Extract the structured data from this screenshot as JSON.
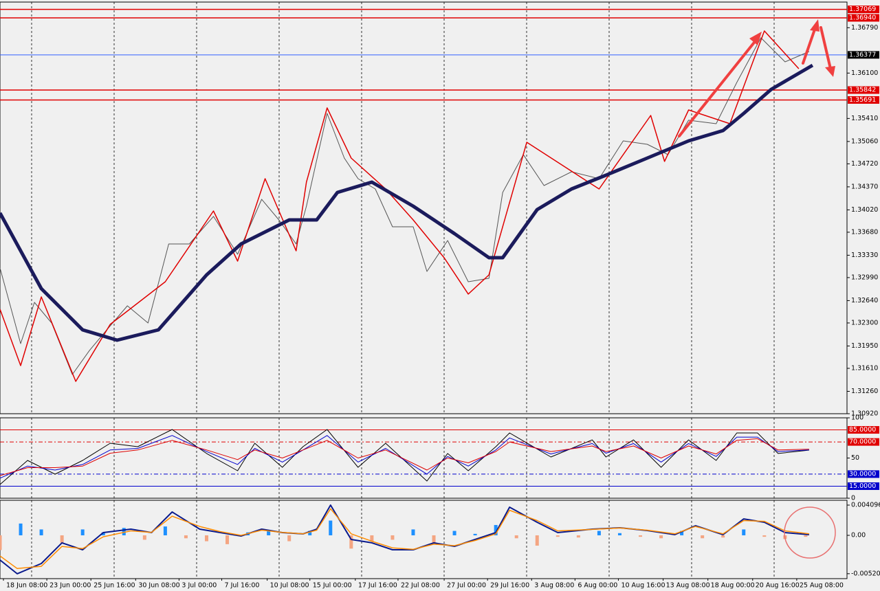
{
  "chart_data": [
    {
      "type": "line",
      "xlim": [
        0,
        246
      ],
      "ylim": [
        1.3092,
        1.3718
      ],
      "yticks": [
        {
          "value": 1.3092,
          "label": "1.30920"
        },
        {
          "value": 1.3126,
          "label": "1.31260"
        },
        {
          "value": 1.3161,
          "label": "1.31610"
        },
        {
          "value": 1.3195,
          "label": "1.31950"
        },
        {
          "value": 1.323,
          "label": "1.32300"
        },
        {
          "value": 1.3264,
          "label": "1.32640"
        },
        {
          "value": 1.3299,
          "label": "1.32990"
        },
        {
          "value": 1.3333,
          "label": "1.33330"
        },
        {
          "value": 1.3368,
          "label": "1.33680"
        },
        {
          "value": 1.3402,
          "label": "1.34020"
        },
        {
          "value": 1.3437,
          "label": "1.34370"
        },
        {
          "value": 1.3472,
          "label": "1.34720"
        },
        {
          "value": 1.3506,
          "label": "1.35060"
        },
        {
          "value": 1.3541,
          "label": "1.35410"
        },
        {
          "value": 1.361,
          "label": "1.36100"
        },
        {
          "value": 1.3679,
          "label": "1.36790"
        }
      ],
      "levels": [
        {
          "value": 1.37069,
          "color": "#e00000"
        },
        {
          "value": 1.3694,
          "label": "1.36940",
          "color": "#e00000"
        },
        {
          "value": 1.36377,
          "color": "#000000"
        },
        {
          "value": 1.35842,
          "color": "#e00000"
        },
        {
          "value": 1.35691,
          "color": "#e00000"
        }
      ],
      "series": [
        {
          "color": "#555555",
          "x": [
            0,
            6,
            10,
            15,
            21,
            26,
            31,
            37,
            43,
            49,
            55,
            62,
            69,
            76,
            81,
            86,
            89,
            95,
            100,
            104,
            109,
            114,
            120,
            124,
            130,
            136,
            142,
            146,
            152,
            158,
            166,
            174,
            181,
            188,
            194,
            200,
            208,
            214,
            221,
            228,
            235
          ],
          "values": [
            1.33136,
            1.31986,
            1.32613,
            1.323,
            1.31516,
            1.31882,
            1.32195,
            1.32561,
            1.323,
            1.33501,
            1.33501,
            1.3392,
            1.33345,
            1.34181,
            1.33867,
            1.33501,
            1.34076,
            1.35487,
            1.34808,
            1.34494,
            1.34337,
            1.33763,
            1.33763,
            1.33083,
            1.33554,
            1.32927,
            1.32979,
            1.34285,
            1.3486,
            1.3439,
            1.34599,
            1.34494,
            1.35069,
            1.35017,
            1.3486,
            1.35383,
            1.3533,
            1.35957,
            1.36637,
            1.36271,
            1.36428
          ]
        },
        {
          "color": "#e00000",
          "x": [
            0,
            6,
            12,
            22,
            32,
            48,
            62,
            69,
            77,
            86,
            89,
            95,
            102,
            112,
            120,
            129,
            136,
            142,
            153,
            174,
            189,
            193,
            200,
            212,
            222,
            232
          ],
          "values": [
            1.32509,
            1.31652,
            1.32697,
            1.31411,
            1.32279,
            1.32927,
            1.34003,
            1.3324,
            1.34494,
            1.33397,
            1.34442,
            1.35571,
            1.34808,
            1.34337,
            1.33867,
            1.33292,
            1.32739,
            1.33031,
            1.35048,
            1.34337,
            1.35456,
            1.34756,
            1.35539,
            1.3533,
            1.36741,
            1.36166
          ]
        },
        {
          "color": "#1b1b5c",
          "x": [
            0,
            12,
            24,
            34,
            46,
            60,
            70,
            84,
            92,
            98,
            108,
            120,
            132,
            142,
            146,
            156,
            166,
            176,
            188,
            200,
            210,
            216,
            224,
            236
          ],
          "values": [
            1.33972,
            1.32822,
            1.32195,
            1.32038,
            1.32195,
            1.33031,
            1.33501,
            1.33867,
            1.33867,
            1.34285,
            1.34442,
            1.34076,
            1.33658,
            1.33292,
            1.33292,
            1.34024,
            1.34337,
            1.34547,
            1.34808,
            1.35069,
            1.35226,
            1.35487,
            1.35853,
            1.36219
          ]
        }
      ]
    },
    {
      "type": "line",
      "xlim": [
        0,
        246
      ],
      "ylim": [
        0,
        100
      ],
      "yticks": [
        0,
        50,
        100
      ],
      "levels": [
        {
          "value": 85,
          "label": "85.0000",
          "color": "#e00000"
        },
        {
          "value": 70,
          "label": "70.0000",
          "color": "#e00000"
        },
        {
          "value": 30,
          "label": "30.0000",
          "color": "#0000cc"
        },
        {
          "value": 15,
          "label": "15.0000",
          "color": "#0000cc"
        }
      ],
      "series": [
        {
          "color": "#000000",
          "x": [
            0,
            8,
            16,
            24,
            32,
            40,
            50,
            60,
            69,
            74,
            82,
            88,
            95,
            104,
            112,
            124,
            130,
            136,
            144,
            148,
            160,
            172,
            176,
            184,
            192,
            200,
            208,
            214,
            220,
            226,
            235
          ],
          "values": [
            17.1,
            47.0,
            29.9,
            47.0,
            68.4,
            64.1,
            85.5,
            55.6,
            34.2,
            68.4,
            38.5,
            64.1,
            85.5,
            38.5,
            68.4,
            21.4,
            55.6,
            34.2,
            64.1,
            81.2,
            51.3,
            72.6,
            51.3,
            72.6,
            38.5,
            72.6,
            47.0,
            81.2,
            81.2,
            55.6,
            59.8
          ]
        },
        {
          "color": "#0000cc",
          "x": [
            0,
            8,
            16,
            24,
            32,
            40,
            50,
            60,
            69,
            74,
            82,
            88,
            95,
            104,
            112,
            124,
            130,
            136,
            144,
            148,
            160,
            172,
            176,
            184,
            192,
            200,
            208,
            214,
            220,
            226,
            235
          ],
          "values": [
            25,
            40,
            35,
            42,
            60,
            62,
            78,
            58,
            42,
            62,
            45,
            60,
            78,
            45,
            62,
            30,
            52,
            40,
            60,
            75,
            55,
            68,
            56,
            68,
            45,
            68,
            52,
            76,
            76,
            58,
            60
          ]
        },
        {
          "color": "#dd0000",
          "x": [
            0,
            8,
            16,
            24,
            32,
            40,
            50,
            60,
            69,
            74,
            82,
            88,
            95,
            104,
            112,
            124,
            130,
            136,
            144,
            148,
            160,
            172,
            176,
            184,
            192,
            200,
            208,
            214,
            220,
            226,
            235
          ],
          "values": [
            28,
            38,
            38,
            40,
            56,
            60,
            72,
            60,
            48,
            60,
            50,
            60,
            72,
            50,
            60,
            35,
            50,
            44,
            58,
            70,
            58,
            65,
            58,
            65,
            50,
            65,
            55,
            72,
            74,
            60,
            61
          ]
        }
      ]
    },
    {
      "type": "bar",
      "xlim": [
        0,
        246
      ],
      "ylim": [
        -0.00587,
        0.00475
      ],
      "yticks": [
        0.0040969,
        {
          "value": 0,
          "label": "0.00"
        },
        -0.005202
      ],
      "xticks": [
        {
          "value": 1,
          "label": "18 Jun 08:00"
        },
        {
          "value": 13.6,
          "label": "23 Jun 00:00"
        },
        {
          "value": 26.4,
          "label": "25 Jun 16:00"
        },
        {
          "value": 39.4,
          "label": "30 Jun 08:00"
        },
        {
          "value": 52,
          "label": "3 Jul 00:00"
        },
        {
          "value": 64.4,
          "label": "7 Jul 16:00"
        },
        {
          "value": 77.6,
          "label": "10 Jul 08:00"
        },
        {
          "value": 90,
          "label": "15 Jul 00:00"
        },
        {
          "value": 103.2,
          "label": "17 Jul 16:00"
        },
        {
          "value": 115.6,
          "label": "22 Jul 08:00"
        },
        {
          "value": 129,
          "label": "27 Jul 00:00"
        },
        {
          "value": 141.6,
          "label": "29 Jul 16:00"
        },
        {
          "value": 154.4,
          "label": "3 Aug 08:00"
        },
        {
          "value": 167,
          "label": "6 Aug 00:00"
        },
        {
          "value": 179.6,
          "label": "10 Aug 16:00"
        },
        {
          "value": 192.6,
          "label": "13 Aug 08:00"
        },
        {
          "value": 205.6,
          "label": "18 Aug 00:00"
        },
        {
          "value": 218.6,
          "label": "20 Aug 16:00"
        },
        {
          "value": 231.4,
          "label": "25 Aug 08:00"
        }
      ],
      "histogram": {
        "up_color": "#1e90ff",
        "down_color": "#f4a582",
        "x": [
          0,
          6,
          12,
          18,
          24,
          30,
          36,
          42,
          48,
          54,
          60,
          66,
          72,
          78,
          84,
          90,
          96,
          102,
          108,
          114,
          120,
          126,
          132,
          138,
          144,
          150,
          156,
          162,
          168,
          174,
          180,
          186,
          192,
          198,
          204,
          210,
          216,
          222,
          228,
          234
        ],
        "values": [
          -0.002,
          0.0016,
          0.0008,
          -0.001,
          0.0008,
          0.0004,
          0.001,
          -0.0006,
          0.0012,
          -0.0004,
          -0.0008,
          -0.0012,
          0.0004,
          0.0006,
          -0.0008,
          0.0006,
          0.002,
          -0.0018,
          -0.0008,
          -0.0006,
          0.0008,
          -0.001,
          0.0006,
          0.0002,
          0.0014,
          -0.0004,
          -0.0014,
          -0.0002,
          -0.0003,
          0.0006,
          0.0003,
          -0.0002,
          -0.0004,
          0.0006,
          -0.0004,
          -0.0003,
          0.0008,
          -0.0002,
          -0.0005,
          -0.0002
        ]
      },
      "series": [
        {
          "color": "#0a1a8c",
          "x": [
            0,
            5,
            12,
            18,
            24,
            30,
            38,
            44,
            50,
            58,
            64,
            70,
            76,
            82,
            88,
            92,
            96,
            102,
            108,
            114,
            120,
            126,
            132,
            138,
            144,
            148,
            156,
            162,
            172,
            180,
            188,
            196,
            202,
            210,
            216,
            222,
            228,
            235
          ],
          "values": [
            -0.00335,
            -0.00521,
            -0.00382,
            -0.00102,
            -0.00196,
            0.00037,
            0.00084,
            0.00037,
            0.00317,
            0.00084,
            0.00037,
            -9e-05,
            0.00084,
            0.00037,
            0.00019,
            0.00084,
            0.0041,
            -0.00056,
            -0.00102,
            -0.00196,
            -0.00196,
            -0.00102,
            -0.00149,
            -0.00056,
            0.00037,
            0.00382,
            0.00177,
            0.00037,
            0.00084,
            0.00102,
            0.00065,
            9e-05,
            0.0013,
            9e-05,
            0.00223,
            0.00177,
            0.00037,
            9e-05
          ]
        },
        {
          "color": "#ff8c00",
          "x": [
            0,
            5,
            12,
            18,
            24,
            30,
            38,
            44,
            50,
            58,
            64,
            70,
            76,
            82,
            88,
            92,
            96,
            102,
            108,
            114,
            120,
            126,
            132,
            138,
            144,
            148,
            156,
            162,
            172,
            180,
            188,
            196,
            202,
            210,
            216,
            222,
            228,
            235
          ],
          "values": [
            -0.0028,
            -0.0045,
            -0.0042,
            -0.0015,
            -0.0018,
            -0.0002,
            0.0006,
            0.0004,
            0.0026,
            0.0012,
            0.0005,
            0,
            0.0007,
            0.0004,
            0.0002,
            0.0007,
            0.0036,
            0.0002,
            -0.0008,
            -0.0017,
            -0.0019,
            -0.0012,
            -0.0014,
            -0.0007,
            0.0002,
            0.0034,
            0.002,
            0.0006,
            0.0008,
            0.001,
            0.0007,
            0.0002,
            0.0012,
            0.0002,
            0.002,
            0.0019,
            0.0006,
            0.0002
          ]
        }
      ]
    }
  ]
}
